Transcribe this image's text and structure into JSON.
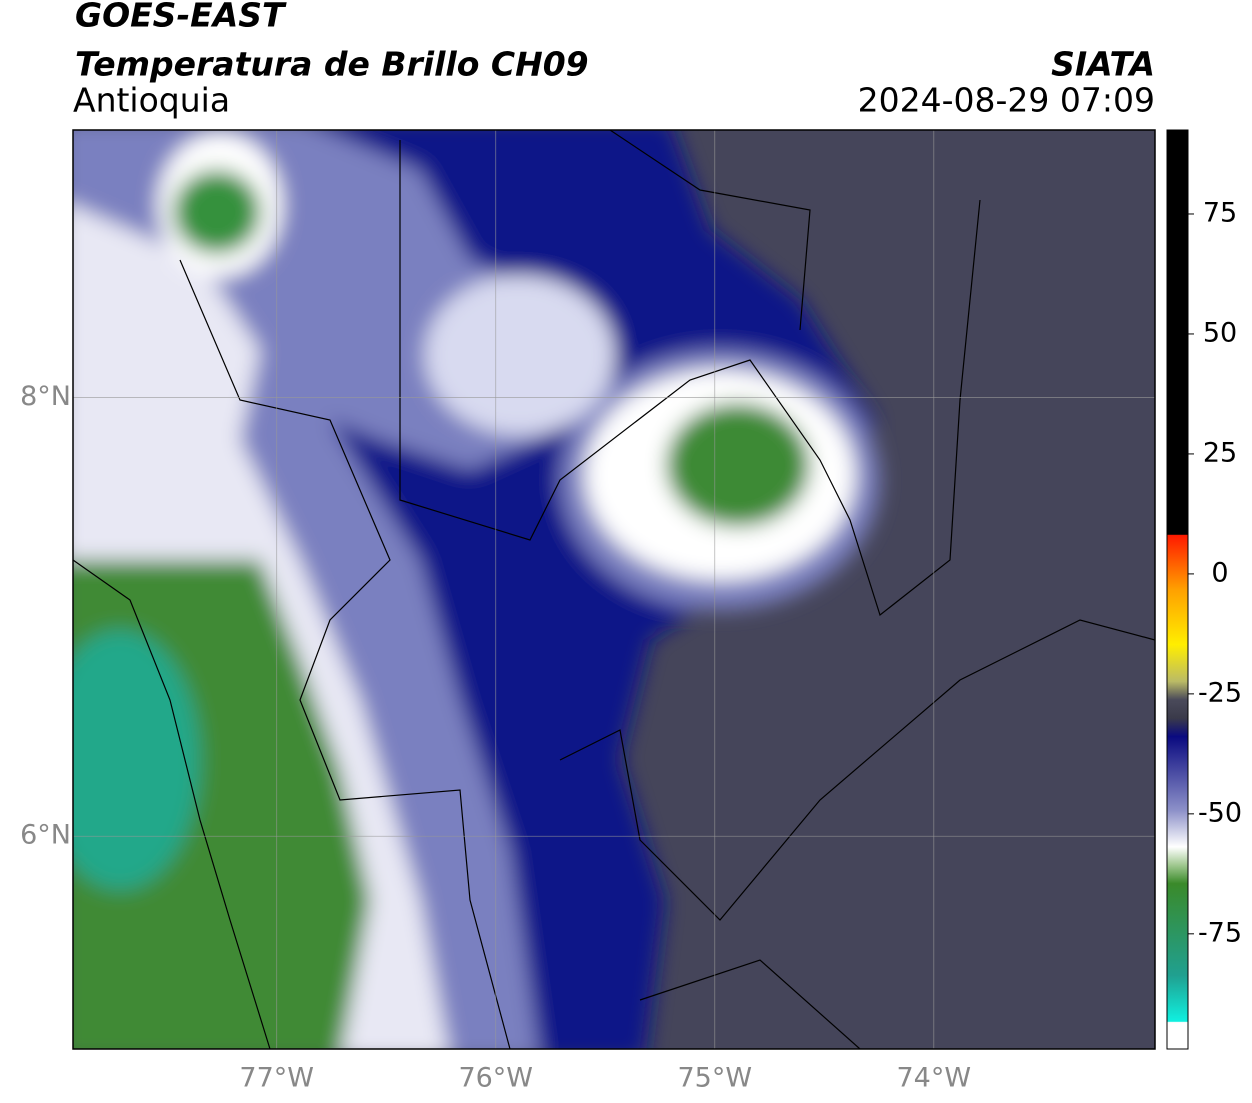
{
  "header": {
    "satellite": "GOES-EAST",
    "product": "Temperatura de Brillo CH09",
    "region": "Antioquia",
    "source": "SIATA",
    "datetime": "2024-08-29 07:09"
  },
  "map": {
    "lonlim": [
      -77.93,
      -72.99
    ],
    "latlim": [
      5.03,
      9.22
    ],
    "lon_ticks": [
      {
        "value": -77,
        "label": "77°W"
      },
      {
        "value": -76,
        "label": "76°W"
      },
      {
        "value": -75,
        "label": "75°W"
      },
      {
        "value": -74,
        "label": "74°W"
      }
    ],
    "lat_ticks": [
      {
        "value": 8,
        "label": "8°N"
      },
      {
        "value": 6,
        "label": "6°N"
      }
    ],
    "colorbar": {
      "lim": [
        -99,
        92.5
      ],
      "ticks": [
        75,
        50,
        25,
        0,
        -25,
        -50,
        -75
      ]
    }
  }
}
